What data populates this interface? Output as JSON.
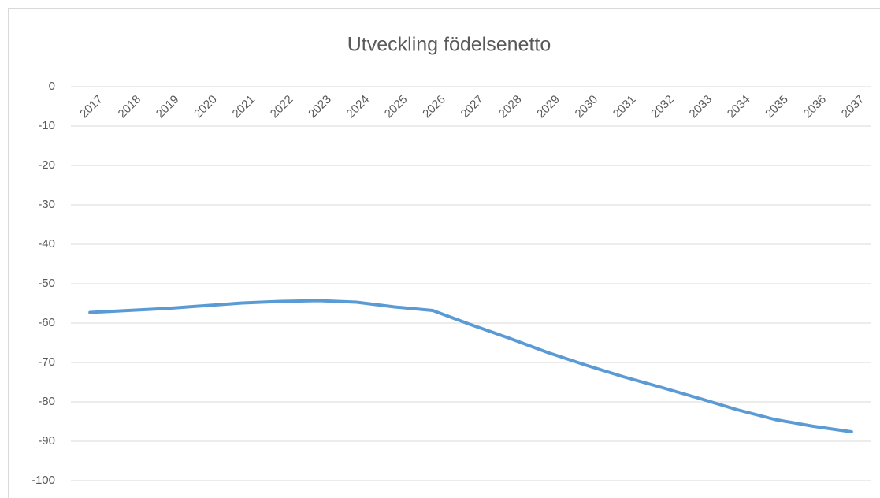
{
  "chart_data": {
    "type": "line",
    "title": "Utveckling födelsenetto",
    "categories": [
      "2017",
      "2018",
      "2019",
      "2020",
      "2021",
      "2022",
      "2023",
      "2024",
      "2025",
      "2026",
      "2027",
      "2028",
      "2029",
      "2030",
      "2031",
      "2032",
      "2033",
      "2034",
      "2035",
      "2036",
      "2037"
    ],
    "series": [
      {
        "name": "Födelsenetto",
        "color": "#5b9bd5",
        "values": [
          -57.3,
          -56.8,
          -56.3,
          -55.6,
          -54.9,
          -54.5,
          -54.3,
          -54.7,
          -55.9,
          -56.8,
          -60.4,
          -63.8,
          -67.4,
          -70.6,
          -73.6,
          -76.3,
          -79.1,
          -82.0,
          -84.5,
          -86.2,
          -87.6
        ]
      }
    ],
    "ylim": [
      -100,
      0
    ],
    "yticks": [
      0,
      -10,
      -20,
      -30,
      -40,
      -50,
      -60,
      -70,
      -80,
      -90,
      -100
    ],
    "grid": true
  }
}
